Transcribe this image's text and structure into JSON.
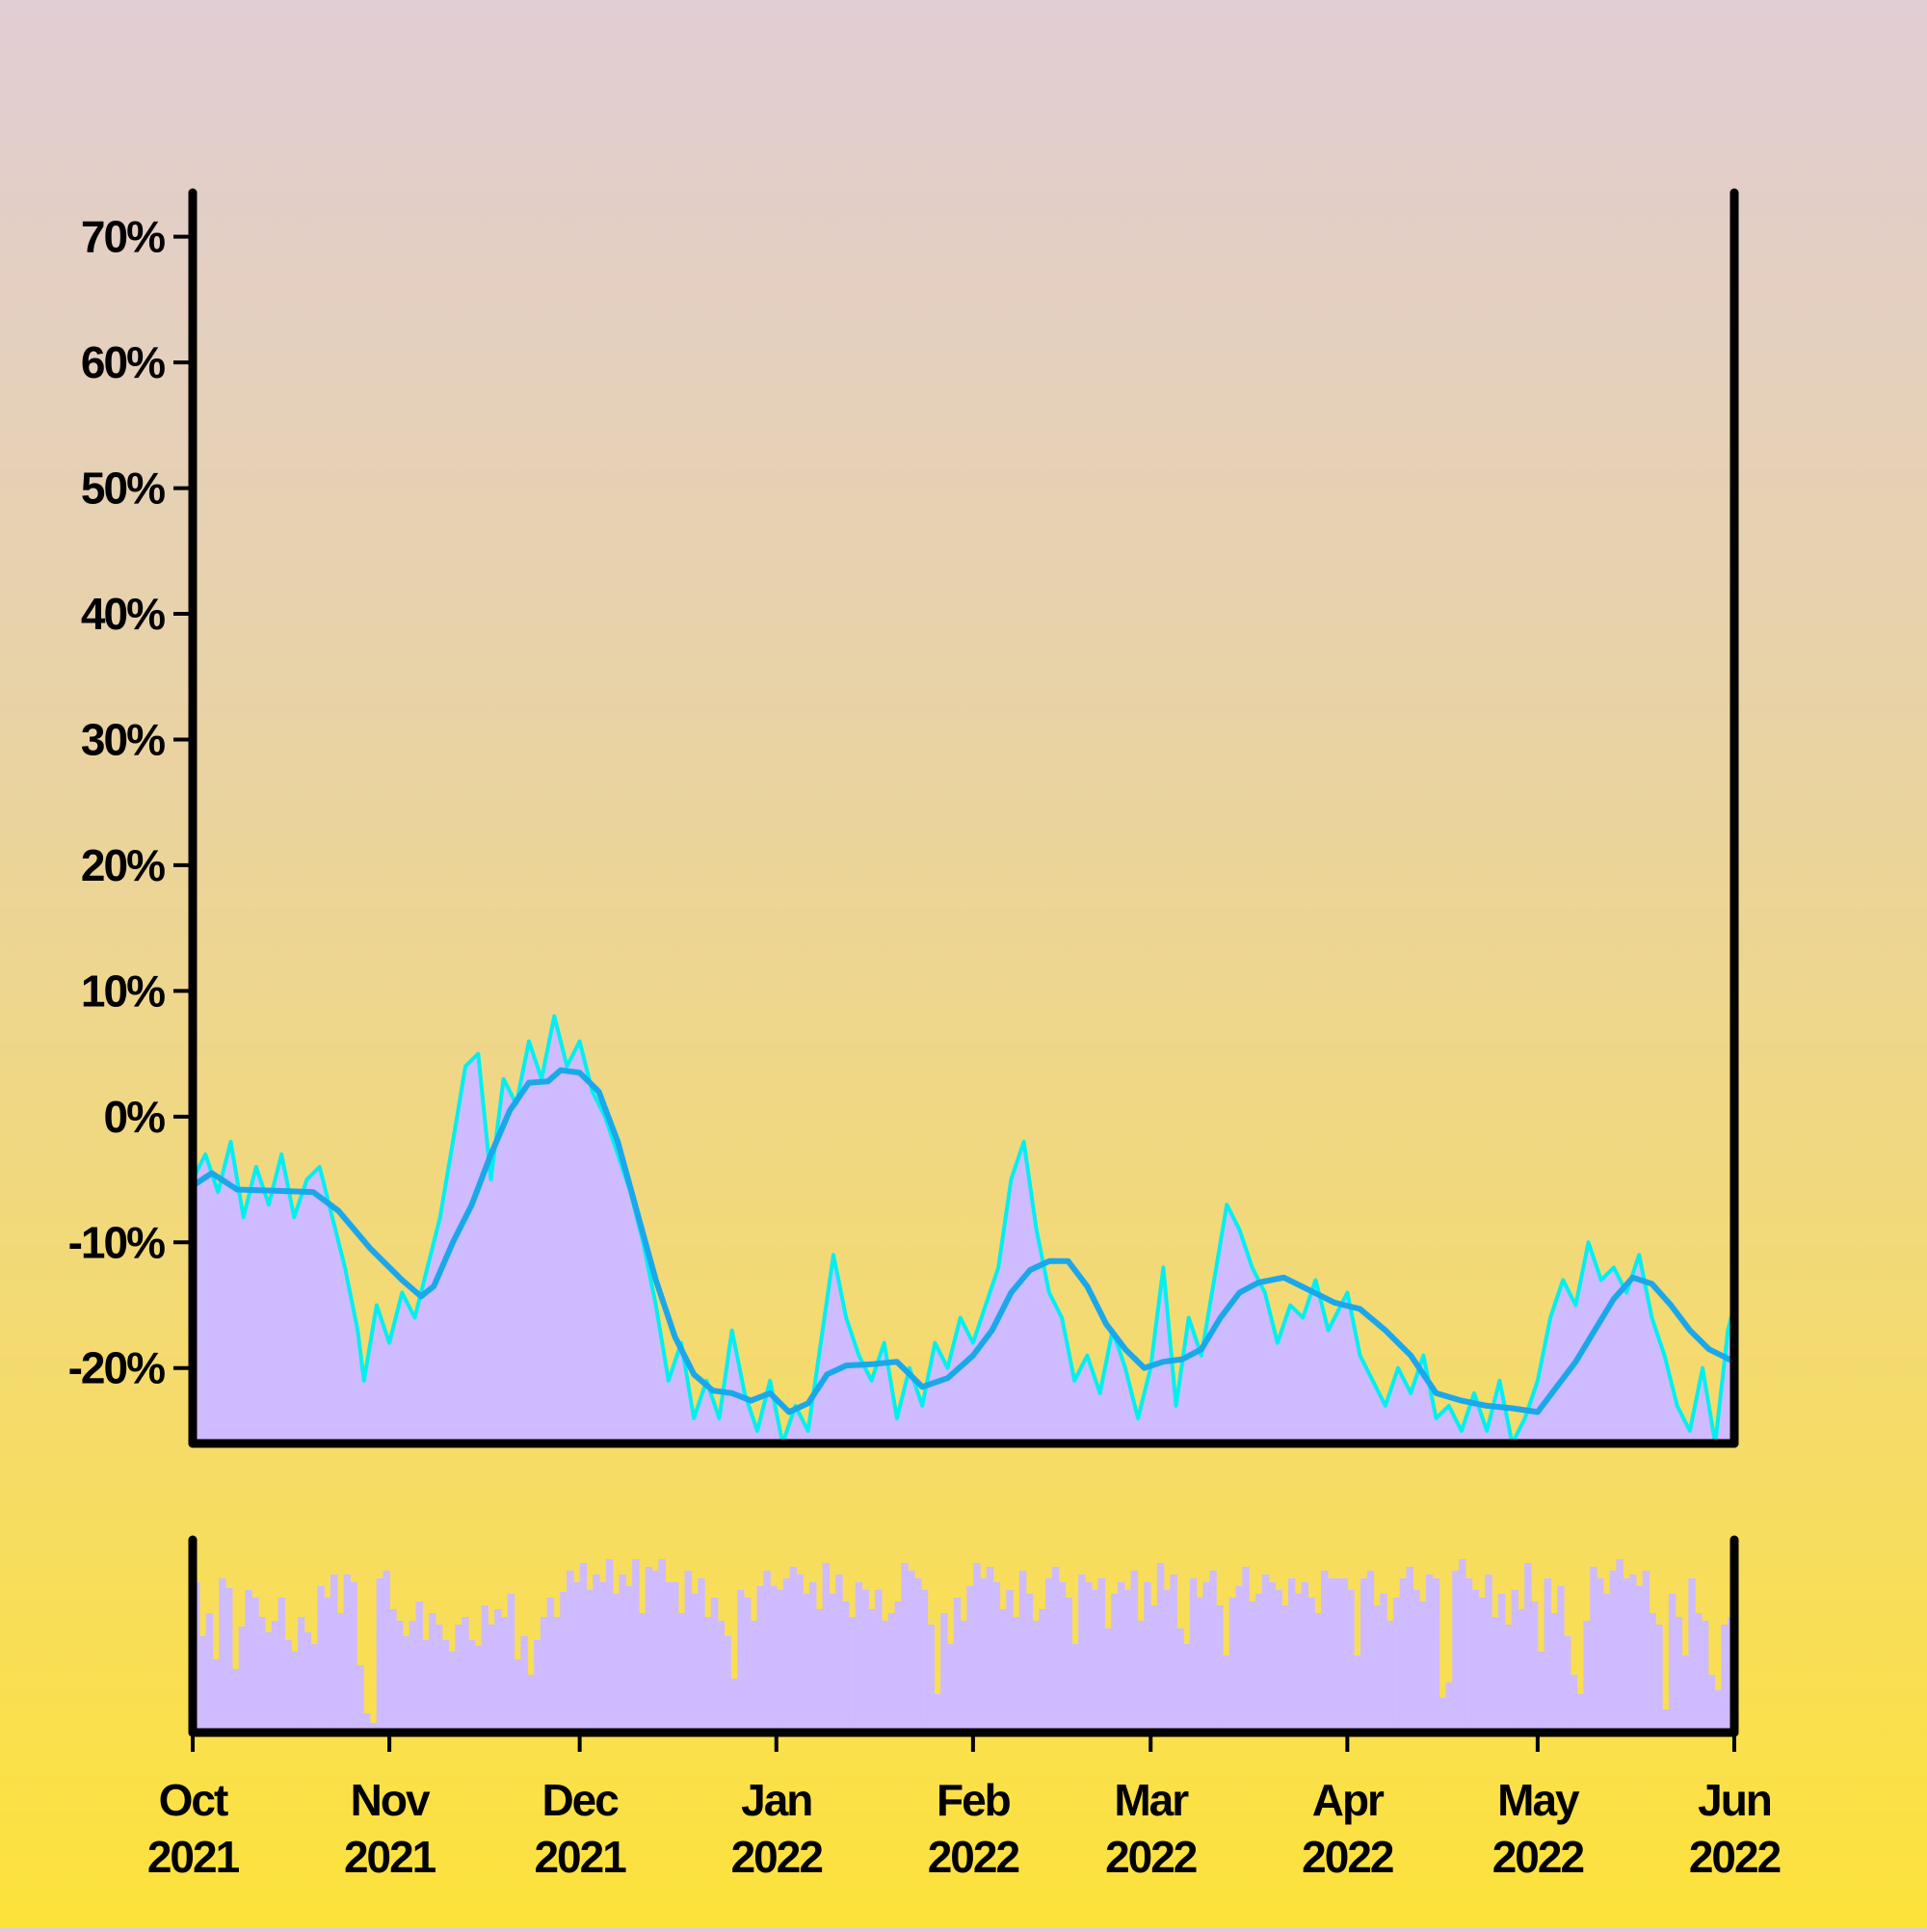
{
  "chart_data": {
    "type": "line",
    "title": "",
    "xlabel": "",
    "ylabel": "",
    "x_axis": {
      "scale": "date",
      "range": [
        "2021-10-01",
        "2022-06-01"
      ],
      "ticks": [
        {
          "date": "2021-10-01",
          "line1": "Oct",
          "line2": "2021"
        },
        {
          "date": "2021-11-01",
          "line1": "Nov",
          "line2": "2021"
        },
        {
          "date": "2021-12-01",
          "line1": "Dec",
          "line2": "2021"
        },
        {
          "date": "2022-01-01",
          "line1": "Jan",
          "line2": "2022"
        },
        {
          "date": "2022-02-01",
          "line1": "Feb",
          "line2": "2022"
        },
        {
          "date": "2022-03-01",
          "line1": "Mar",
          "line2": "2022"
        },
        {
          "date": "2022-04-01",
          "line1": "Apr",
          "line2": "2022"
        },
        {
          "date": "2022-05-01",
          "line1": "May",
          "line2": "2022"
        },
        {
          "date": "2022-06-01",
          "line1": "Jun",
          "line2": "2022"
        }
      ]
    },
    "y_axis": {
      "unit": "%",
      "ylim": [
        -26,
        73.5
      ],
      "ticks": [
        70,
        60,
        50,
        40,
        30,
        20,
        10,
        0,
        -10,
        -20
      ],
      "tick_labels": [
        "70%",
        "60%",
        "50%",
        "40%",
        "30%",
        "20%",
        "10%",
        "0%",
        "-10%",
        "-20%"
      ]
    },
    "grid": false,
    "legend": "none",
    "colors": {
      "area_fill": "#cfbbff",
      "daily_line": "#00f0f0",
      "smoothed_line": "#1aa8ea",
      "axis": "#000000",
      "volume_bar": "#cfbbff"
    },
    "series": [
      {
        "role": "daily",
        "style": "area+line",
        "points": [
          [
            "2021-10-01",
            -5
          ],
          [
            "2021-10-03",
            -3
          ],
          [
            "2021-10-05",
            -6
          ],
          [
            "2021-10-07",
            -2
          ],
          [
            "2021-10-09",
            -8
          ],
          [
            "2021-10-11",
            -4
          ],
          [
            "2021-10-13",
            -7
          ],
          [
            "2021-10-15",
            -3
          ],
          [
            "2021-10-17",
            -8
          ],
          [
            "2021-10-19",
            -5
          ],
          [
            "2021-10-21",
            -4
          ],
          [
            "2021-10-23",
            -8
          ],
          [
            "2021-10-25",
            -12
          ],
          [
            "2021-10-27",
            -17
          ],
          [
            "2021-10-28",
            -21
          ],
          [
            "2021-10-30",
            -15
          ],
          [
            "2021-11-01",
            -18
          ],
          [
            "2021-11-03",
            -14
          ],
          [
            "2021-11-05",
            -16
          ],
          [
            "2021-11-07",
            -12
          ],
          [
            "2021-11-09",
            -8
          ],
          [
            "2021-11-11",
            -2
          ],
          [
            "2021-11-13",
            4
          ],
          [
            "2021-11-15",
            5
          ],
          [
            "2021-11-17",
            -5
          ],
          [
            "2021-11-19",
            3
          ],
          [
            "2021-11-21",
            1
          ],
          [
            "2021-11-23",
            6
          ],
          [
            "2021-11-25",
            3
          ],
          [
            "2021-11-27",
            8
          ],
          [
            "2021-11-29",
            4
          ],
          [
            "2021-12-01",
            6
          ],
          [
            "2021-12-03",
            2
          ],
          [
            "2021-12-05",
            0
          ],
          [
            "2021-12-07",
            -3
          ],
          [
            "2021-12-09",
            -6
          ],
          [
            "2021-12-11",
            -10
          ],
          [
            "2021-12-13",
            -15
          ],
          [
            "2021-12-15",
            -21
          ],
          [
            "2021-12-17",
            -18
          ],
          [
            "2021-12-19",
            -24
          ],
          [
            "2021-12-21",
            -21
          ],
          [
            "2021-12-23",
            -24
          ],
          [
            "2021-12-25",
            -17
          ],
          [
            "2021-12-27",
            -22
          ],
          [
            "2021-12-29",
            -25
          ],
          [
            "2021-12-31",
            -21
          ],
          [
            "2022-01-02",
            -26
          ],
          [
            "2022-01-04",
            -23
          ],
          [
            "2022-01-06",
            -25
          ],
          [
            "2022-01-08",
            -18
          ],
          [
            "2022-01-10",
            -11
          ],
          [
            "2022-01-12",
            -16
          ],
          [
            "2022-01-14",
            -19
          ],
          [
            "2022-01-16",
            -21
          ],
          [
            "2022-01-18",
            -18
          ],
          [
            "2022-01-20",
            -24
          ],
          [
            "2022-01-22",
            -20
          ],
          [
            "2022-01-24",
            -23
          ],
          [
            "2022-01-26",
            -18
          ],
          [
            "2022-01-28",
            -20
          ],
          [
            "2022-01-30",
            -16
          ],
          [
            "2022-02-01",
            -18
          ],
          [
            "2022-02-03",
            -15
          ],
          [
            "2022-02-05",
            -12
          ],
          [
            "2022-02-07",
            -5
          ],
          [
            "2022-02-09",
            -2
          ],
          [
            "2022-02-11",
            -9
          ],
          [
            "2022-02-13",
            -14
          ],
          [
            "2022-02-15",
            -16
          ],
          [
            "2022-02-17",
            -21
          ],
          [
            "2022-02-19",
            -19
          ],
          [
            "2022-02-21",
            -22
          ],
          [
            "2022-02-23",
            -17
          ],
          [
            "2022-02-25",
            -20
          ],
          [
            "2022-02-27",
            -24
          ],
          [
            "2022-03-01",
            -20
          ],
          [
            "2022-03-03",
            -12
          ],
          [
            "2022-03-05",
            -23
          ],
          [
            "2022-03-07",
            -16
          ],
          [
            "2022-03-09",
            -19
          ],
          [
            "2022-03-11",
            -13
          ],
          [
            "2022-03-13",
            -7
          ],
          [
            "2022-03-15",
            -9
          ],
          [
            "2022-03-17",
            -12
          ],
          [
            "2022-03-19",
            -14
          ],
          [
            "2022-03-21",
            -18
          ],
          [
            "2022-03-23",
            -15
          ],
          [
            "2022-03-25",
            -16
          ],
          [
            "2022-03-27",
            -13
          ],
          [
            "2022-03-29",
            -17
          ],
          [
            "2022-04-01",
            -14
          ],
          [
            "2022-04-03",
            -19
          ],
          [
            "2022-04-05",
            -21
          ],
          [
            "2022-04-07",
            -23
          ],
          [
            "2022-04-09",
            -20
          ],
          [
            "2022-04-11",
            -22
          ],
          [
            "2022-04-13",
            -19
          ],
          [
            "2022-04-15",
            -24
          ],
          [
            "2022-04-17",
            -23
          ],
          [
            "2022-04-19",
            -25
          ],
          [
            "2022-04-21",
            -22
          ],
          [
            "2022-04-23",
            -25
          ],
          [
            "2022-04-25",
            -21
          ],
          [
            "2022-04-27",
            -26
          ],
          [
            "2022-04-29",
            -24
          ],
          [
            "2022-05-01",
            -21
          ],
          [
            "2022-05-03",
            -16
          ],
          [
            "2022-05-05",
            -13
          ],
          [
            "2022-05-07",
            -15
          ],
          [
            "2022-05-09",
            -10
          ],
          [
            "2022-05-11",
            -13
          ],
          [
            "2022-05-13",
            -12
          ],
          [
            "2022-05-15",
            -14
          ],
          [
            "2022-05-17",
            -11
          ],
          [
            "2022-05-19",
            -16
          ],
          [
            "2022-05-21",
            -19
          ],
          [
            "2022-05-23",
            -23
          ],
          [
            "2022-05-25",
            -25
          ],
          [
            "2022-05-27",
            -20
          ],
          [
            "2022-05-29",
            -26
          ],
          [
            "2022-05-31",
            -17
          ],
          [
            "2022-06-01",
            -15
          ]
        ]
      },
      {
        "role": "smoothed",
        "style": "line",
        "points": [
          [
            "2021-10-01",
            -5.5
          ],
          [
            "2021-10-04",
            -4.5
          ],
          [
            "2021-10-08",
            -5.8
          ],
          [
            "2021-10-14",
            -5.9
          ],
          [
            "2021-10-20",
            -6.0
          ],
          [
            "2021-10-24",
            -7.5
          ],
          [
            "2021-10-29",
            -10.5
          ],
          [
            "2021-11-03",
            -13.0
          ],
          [
            "2021-11-06",
            -14.3
          ],
          [
            "2021-11-08",
            -13.5
          ],
          [
            "2021-11-11",
            -10.0
          ],
          [
            "2021-11-14",
            -7.0
          ],
          [
            "2021-11-17",
            -3.0
          ],
          [
            "2021-11-20",
            0.5
          ],
          [
            "2021-11-23",
            2.7
          ],
          [
            "2021-11-26",
            2.8
          ],
          [
            "2021-11-28",
            3.7
          ],
          [
            "2021-12-01",
            3.5
          ],
          [
            "2021-12-04",
            2.0
          ],
          [
            "2021-12-07",
            -2.0
          ],
          [
            "2021-12-10",
            -7.5
          ],
          [
            "2021-12-13",
            -13.0
          ],
          [
            "2021-12-16",
            -17.5
          ],
          [
            "2021-12-19",
            -20.5
          ],
          [
            "2021-12-22",
            -21.8
          ],
          [
            "2021-12-25",
            -22.0
          ],
          [
            "2021-12-28",
            -22.6
          ],
          [
            "2021-12-31",
            -22.0
          ],
          [
            "2022-01-03",
            -23.5
          ],
          [
            "2022-01-06",
            -22.8
          ],
          [
            "2022-01-09",
            -20.5
          ],
          [
            "2022-01-12",
            -19.8
          ],
          [
            "2022-01-16",
            -19.7
          ],
          [
            "2022-01-20",
            -19.5
          ],
          [
            "2022-01-24",
            -21.5
          ],
          [
            "2022-01-28",
            -20.8
          ],
          [
            "2022-02-01",
            -19.0
          ],
          [
            "2022-02-04",
            -17.0
          ],
          [
            "2022-02-07",
            -14.0
          ],
          [
            "2022-02-10",
            -12.2
          ],
          [
            "2022-02-13",
            -11.5
          ],
          [
            "2022-02-16",
            -11.5
          ],
          [
            "2022-02-19",
            -13.5
          ],
          [
            "2022-02-22",
            -16.5
          ],
          [
            "2022-02-25",
            -18.5
          ],
          [
            "2022-02-28",
            -20.0
          ],
          [
            "2022-03-03",
            -19.5
          ],
          [
            "2022-03-06",
            -19.3
          ],
          [
            "2022-03-09",
            -18.5
          ],
          [
            "2022-03-12",
            -16.0
          ],
          [
            "2022-03-15",
            -14.0
          ],
          [
            "2022-03-18",
            -13.2
          ],
          [
            "2022-03-22",
            -12.8
          ],
          [
            "2022-03-26",
            -13.8
          ],
          [
            "2022-03-30",
            -14.8
          ],
          [
            "2022-04-03",
            -15.3
          ],
          [
            "2022-04-07",
            -17.0
          ],
          [
            "2022-04-11",
            -19.0
          ],
          [
            "2022-04-15",
            -22.0
          ],
          [
            "2022-04-19",
            -22.6
          ],
          [
            "2022-04-23",
            -23.0
          ],
          [
            "2022-04-27",
            -23.2
          ],
          [
            "2022-05-01",
            -23.5
          ],
          [
            "2022-05-04",
            -21.5
          ],
          [
            "2022-05-07",
            -19.5
          ],
          [
            "2022-05-10",
            -17.0
          ],
          [
            "2022-05-13",
            -14.5
          ],
          [
            "2022-05-16",
            -12.8
          ],
          [
            "2022-05-19",
            -13.3
          ],
          [
            "2022-05-22",
            -15.0
          ],
          [
            "2022-05-25",
            -17.0
          ],
          [
            "2022-05-28",
            -18.5
          ],
          [
            "2022-06-01",
            -19.5
          ]
        ]
      }
    ],
    "volume_panel": {
      "style": "bar",
      "y_axis_labels": "none",
      "values": [
        0.78,
        0.5,
        0.62,
        0.38,
        0.8,
        0.75,
        0.33,
        0.55,
        0.74,
        0.7,
        0.6,
        0.52,
        0.58,
        0.7,
        0.48,
        0.42,
        0.6,
        0.52,
        0.46,
        0.76,
        0.7,
        0.82,
        0.62,
        0.82,
        0.78,
        0.35,
        0.1,
        0.05,
        0.8,
        0.84,
        0.64,
        0.58,
        0.5,
        0.58,
        0.68,
        0.48,
        0.62,
        0.56,
        0.48,
        0.42,
        0.56,
        0.6,
        0.48,
        0.45,
        0.66,
        0.56,
        0.64,
        0.6,
        0.72,
        0.38,
        0.5,
        0.3,
        0.48,
        0.6,
        0.7,
        0.6,
        0.73,
        0.84,
        0.78,
        0.88,
        0.74,
        0.82,
        0.78,
        0.9,
        0.72,
        0.82,
        0.76,
        0.9,
        0.62,
        0.86,
        0.84,
        0.9,
        0.78,
        0.78,
        0.62,
        0.84,
        0.72,
        0.8,
        0.6,
        0.7,
        0.58,
        0.5,
        0.28,
        0.74,
        0.7,
        0.58,
        0.76,
        0.84,
        0.76,
        0.74,
        0.8,
        0.86,
        0.82,
        0.72,
        0.78,
        0.64,
        0.88,
        0.72,
        0.82,
        0.68,
        0.6,
        0.78,
        0.74,
        0.64,
        0.74,
        0.58,
        0.62,
        0.68,
        0.88,
        0.84,
        0.8,
        0.74,
        0.56,
        0.2,
        0.62,
        0.46,
        0.7,
        0.58,
        0.76,
        0.88,
        0.8,
        0.86,
        0.78,
        0.64,
        0.74,
        0.6,
        0.84,
        0.72,
        0.58,
        0.64,
        0.8,
        0.86,
        0.78,
        0.7,
        0.46,
        0.82,
        0.78,
        0.74,
        0.8,
        0.54,
        0.72,
        0.78,
        0.74,
        0.84,
        0.58,
        0.78,
        0.66,
        0.88,
        0.74,
        0.82,
        0.54,
        0.46,
        0.8,
        0.7,
        0.78,
        0.84,
        0.66,
        0.4,
        0.7,
        0.76,
        0.86,
        0.68,
        0.72,
        0.82,
        0.78,
        0.74,
        0.66,
        0.8,
        0.72,
        0.78,
        0.7,
        0.62,
        0.84,
        0.8,
        0.8,
        0.8,
        0.74,
        0.4,
        0.8,
        0.84,
        0.66,
        0.72,
        0.58,
        0.7,
        0.8,
        0.86,
        0.74,
        0.68,
        0.82,
        0.8,
        0.18,
        0.26,
        0.84,
        0.9,
        0.8,
        0.74,
        0.7,
        0.82,
        0.6,
        0.72,
        0.56,
        0.74,
        0.64,
        0.88,
        0.68,
        0.42,
        0.8,
        0.62,
        0.76,
        0.5,
        0.3,
        0.2,
        0.58,
        0.86,
        0.8,
        0.72,
        0.84,
        0.9,
        0.8,
        0.82,
        0.76,
        0.84,
        0.62,
        0.56,
        0.12,
        0.72,
        0.6,
        0.4,
        0.8,
        0.62,
        0.58,
        0.3,
        0.22,
        0.56,
        0.6
      ]
    }
  }
}
